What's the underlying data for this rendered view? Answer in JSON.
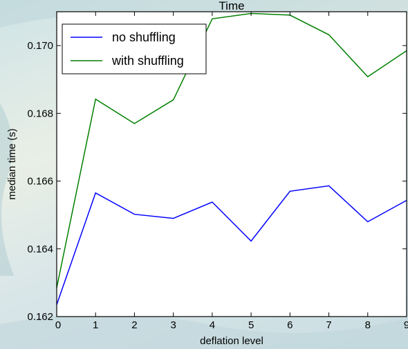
{
  "chart_data": {
    "type": "line",
    "title": "Time",
    "xlabel": "deflation level",
    "ylabel": "median time (s)",
    "xlim": [
      0,
      9
    ],
    "ylim": [
      0.162,
      0.171
    ],
    "x": [
      0,
      1,
      2,
      3,
      4,
      5,
      6,
      7,
      8,
      9
    ],
    "xticks": [
      "0",
      "1",
      "2",
      "3",
      "4",
      "5",
      "6",
      "7",
      "8",
      "9"
    ],
    "yticks": [
      {
        "value": 0.162,
        "label": "0.162"
      },
      {
        "value": 0.164,
        "label": "0.164"
      },
      {
        "value": 0.166,
        "label": "0.166"
      },
      {
        "value": 0.168,
        "label": "0.168"
      },
      {
        "value": 0.17,
        "label": "0.170"
      }
    ],
    "grid": false,
    "legend_position": "top-left",
    "series": [
      {
        "name": "no shuffling",
        "color": "#0000ff",
        "values": [
          0.16235,
          0.16565,
          0.16502,
          0.1649,
          0.16538,
          0.16423,
          0.1657,
          0.16586,
          0.1648,
          0.16543
        ]
      },
      {
        "name": "with shuffling",
        "color": "#007f00",
        "values": [
          0.16285,
          0.16842,
          0.1677,
          0.1684,
          0.17079,
          0.17095,
          0.1709,
          0.17032,
          0.16908,
          0.16985
        ]
      }
    ]
  }
}
